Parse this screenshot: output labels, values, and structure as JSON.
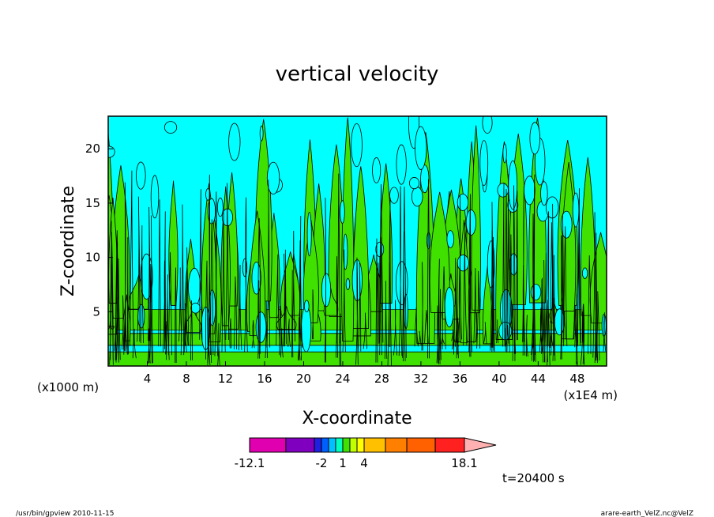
{
  "chart_data": {
    "type": "contour",
    "title": "vertical velocity",
    "xlabel": "X-coordinate",
    "ylabel": "Z-coordinate",
    "x_unit_left": "(x1000 m)",
    "x_unit_right": "(x1E4 m)",
    "xlim": [
      0,
      51
    ],
    "ylim": [
      0,
      23
    ],
    "x_ticks": [
      "4",
      "8",
      "12",
      "16",
      "20",
      "24",
      "28",
      "32",
      "36",
      "40",
      "44",
      "48"
    ],
    "y_ticks": [
      "5",
      "10",
      "15",
      "20"
    ],
    "colorbar": {
      "labels": [
        "-12.1",
        "-2",
        "1",
        "4",
        "18.1"
      ],
      "colors": [
        "#e000b0",
        "#8000c0",
        "#2020e0",
        "#0060ff",
        "#00c0ff",
        "#00ffc0",
        "#40e000",
        "#c0ff00",
        "#ffff00",
        "#ffc000",
        "#ff8000",
        "#ff6000",
        "#ff2020",
        "#ff7070",
        "#ffb0b0"
      ],
      "levels": [
        -12.1,
        -7.0,
        -3.0,
        -2.0,
        -1.0,
        0.0,
        1.0,
        2.0,
        3.0,
        4.0,
        7.0,
        10.0,
        14.0,
        18.1
      ]
    },
    "field_colors": {
      "positive": "#40e000",
      "negative": "#00ffff",
      "contour": "#000000"
    },
    "time_label": "t=20400 s"
  },
  "footer": {
    "left": "/usr/bin/gpview   2010-11-15",
    "right": "arare-earth_VelZ.nc@VelZ"
  }
}
